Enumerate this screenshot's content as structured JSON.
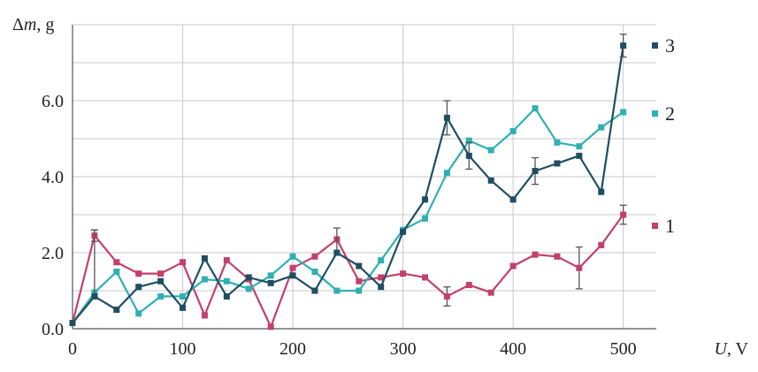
{
  "chart_data": {
    "type": "line",
    "xlabel_var": "U",
    "xlabel_unit": ", V",
    "ylabel_prefix": "Δ",
    "ylabel_var": "m",
    "ylabel_unit": ", g",
    "xlim": [
      0,
      530
    ],
    "ylim": [
      0,
      8
    ],
    "xticks": [
      0,
      100,
      200,
      300,
      400,
      500
    ],
    "xtick_labels": [
      "0",
      "100",
      "200",
      "300",
      "400",
      "500"
    ],
    "yticks": [
      0,
      2,
      4,
      6
    ],
    "ytick_labels": [
      "0.0",
      "2.0",
      "4.0",
      "6.0"
    ],
    "grid": true,
    "legend_position": "right",
    "series": [
      {
        "name": "1",
        "color": "#c2406a",
        "x": [
          0,
          20,
          40,
          60,
          80,
          100,
          120,
          140,
          160,
          180,
          200,
          220,
          240,
          260,
          280,
          300,
          320,
          340,
          360,
          380,
          400,
          420,
          440,
          460,
          480,
          500
        ],
        "y": [
          0.15,
          2.45,
          1.75,
          1.45,
          1.45,
          1.75,
          0.35,
          1.8,
          1.3,
          0.05,
          1.6,
          1.9,
          2.35,
          1.25,
          1.35,
          1.45,
          1.35,
          0.85,
          1.15,
          0.95,
          1.65,
          1.95,
          1.9,
          1.6,
          2.2,
          3.0
        ],
        "error_bars": [
          {
            "x": 20,
            "y": 2.45,
            "err": 0.15
          },
          {
            "x": 340,
            "y": 0.85,
            "err": 0.25
          },
          {
            "x": 460,
            "y": 1.6,
            "err": 0.55
          },
          {
            "x": 500,
            "y": 3.0,
            "err": 0.25
          }
        ]
      },
      {
        "name": "2",
        "color": "#2fb0b3",
        "x": [
          0,
          20,
          40,
          60,
          80,
          100,
          120,
          140,
          160,
          180,
          200,
          220,
          240,
          260,
          280,
          300,
          320,
          340,
          360,
          380,
          400,
          420,
          440,
          460,
          480,
          500
        ],
        "y": [
          0.15,
          0.95,
          1.5,
          0.4,
          0.85,
          0.85,
          1.3,
          1.25,
          1.05,
          1.4,
          1.9,
          1.5,
          1.0,
          1.0,
          1.8,
          2.6,
          2.9,
          4.1,
          4.95,
          4.7,
          5.2,
          5.8,
          4.9,
          4.8,
          5.3,
          5.7
        ],
        "error_bars": []
      },
      {
        "name": "3",
        "color": "#1f4e63",
        "x": [
          0,
          20,
          40,
          60,
          80,
          100,
          120,
          140,
          160,
          180,
          200,
          220,
          240,
          260,
          280,
          300,
          320,
          340,
          360,
          380,
          400,
          420,
          440,
          460,
          480,
          500
        ],
        "y": [
          0.15,
          0.85,
          0.5,
          1.1,
          1.25,
          0.55,
          1.85,
          0.85,
          1.35,
          1.2,
          1.4,
          1.0,
          2.0,
          1.65,
          1.1,
          2.55,
          3.4,
          5.55,
          4.55,
          3.9,
          3.4,
          4.15,
          4.35,
          4.55,
          3.6,
          7.45
        ],
        "error_bars": [
          {
            "x": 20,
            "y": 0.85,
            "err": 1.75,
            "upper_only": true
          },
          {
            "x": 240,
            "y": 2.0,
            "err": 0.65,
            "upper_only": true
          },
          {
            "x": 340,
            "y": 5.55,
            "err": 0.45
          },
          {
            "x": 360,
            "y": 4.55,
            "err": 0.35
          },
          {
            "x": 420,
            "y": 4.15,
            "err": 0.35
          },
          {
            "x": 500,
            "y": 7.45,
            "err": 0.3
          }
        ]
      }
    ]
  }
}
